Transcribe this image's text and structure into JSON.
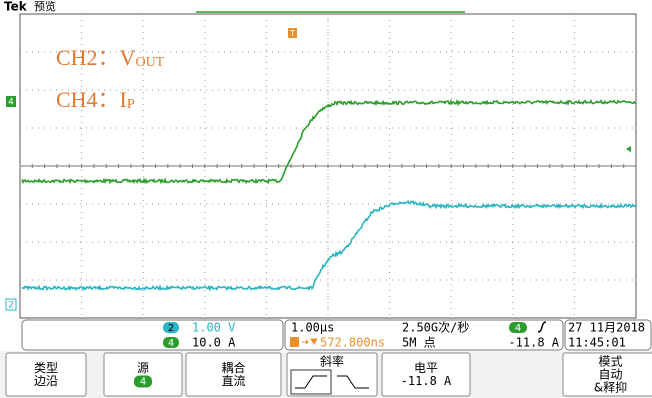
{
  "header": {
    "brand": "Tek",
    "mode": "预览"
  },
  "markers": {
    "trigger_pos": "T",
    "ch4": "4",
    "ch2": "2"
  },
  "annotations": [
    {
      "prefix": "CH2：V",
      "sub": "OUT"
    },
    {
      "prefix": "CH4：I",
      "sub": "P"
    }
  ],
  "status": {
    "ch2": {
      "badge": "2",
      "scale": "1.00 V"
    },
    "ch4": {
      "badge": "4",
      "scale": "10.0 A"
    },
    "timebase": "1.00µs",
    "sample_rate": "2.50G次/秒",
    "trigger_source": "4",
    "trigger_level": "-11.8 A",
    "position": "572.800ns",
    "record_length": "5M 点",
    "date": "27 11月2018",
    "time": "11:45:01"
  },
  "menu": [
    {
      "lines": [
        "类型",
        "边沿"
      ]
    },
    {
      "lines": [
        "源",
        "4"
      ]
    },
    {
      "lines": [
        "耦合",
        "直流"
      ]
    },
    {
      "lines": [
        "斜率"
      ]
    },
    {
      "lines": [
        "电平",
        "-11.8 A"
      ]
    },
    {
      "lines": [
        "模式",
        "自动",
        "&释抑"
      ]
    }
  ]
}
